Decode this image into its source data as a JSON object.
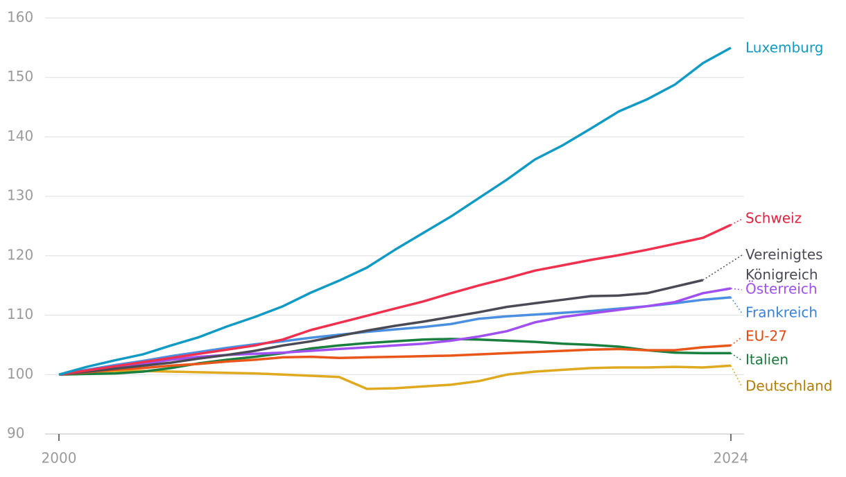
{
  "chart_data": {
    "type": "line",
    "x": [
      2000,
      2001,
      2002,
      2003,
      2004,
      2005,
      2006,
      2007,
      2008,
      2009,
      2010,
      2011,
      2012,
      2013,
      2014,
      2015,
      2016,
      2017,
      2018,
      2019,
      2020,
      2021,
      2022,
      2023,
      2024
    ],
    "xlim": [
      2000,
      2024
    ],
    "xticks": [
      2000,
      2024
    ],
    "ylim": [
      90,
      160
    ],
    "yticks": [
      90,
      100,
      110,
      120,
      130,
      140,
      150,
      160
    ],
    "grid": true,
    "series": [
      {
        "name": "Luxemburg",
        "color": "#119ac4",
        "values": [
          100,
          101.3,
          102.4,
          103.4,
          104.9,
          106.3,
          108.1,
          109.7,
          111.5,
          113.8,
          115.8,
          118.0,
          121.0,
          123.8,
          126.6,
          129.7,
          132.8,
          136.2,
          138.6,
          141.4,
          144.3,
          146.3,
          148.8,
          152.4,
          155.0
        ]
      },
      {
        "name": "Schweiz",
        "color": "#f0304f",
        "values": [
          100,
          100.7,
          101.4,
          102.1,
          102.8,
          103.5,
          104.2,
          104.9,
          105.9,
          107.5,
          108.7,
          109.9,
          111.1,
          112.3,
          113.7,
          115.0,
          116.2,
          117.5,
          118.4,
          119.3,
          120.1,
          121.0,
          122.0,
          123.0,
          125.2
        ]
      },
      {
        "name": "Vereinigtes Königreich",
        "color": "#4a4a55",
        "values": [
          100,
          100.5,
          101.0,
          101.5,
          102.0,
          102.7,
          103.3,
          104.0,
          104.9,
          105.6,
          106.5,
          107.4,
          108.2,
          108.9,
          109.7,
          110.5,
          111.4,
          112.0,
          112.6,
          113.2,
          113.3,
          113.7,
          114.8,
          115.9,
          null
        ]
      },
      {
        "name": "Österreich",
        "color": "#a050f0",
        "values": [
          100,
          100.6,
          101.2,
          101.8,
          102.5,
          103.0,
          103.3,
          103.5,
          103.7,
          104.0,
          104.3,
          104.6,
          104.9,
          105.2,
          105.7,
          106.4,
          107.3,
          108.8,
          109.7,
          110.3,
          110.9,
          111.5,
          112.2,
          113.7,
          114.5
        ]
      },
      {
        "name": "Frankreich",
        "color": "#4a8fe0",
        "values": [
          100,
          100.8,
          101.6,
          102.3,
          103.1,
          103.8,
          104.5,
          105.1,
          105.6,
          106.2,
          106.7,
          107.2,
          107.6,
          108.0,
          108.5,
          109.4,
          109.8,
          110.1,
          110.4,
          110.7,
          111.1,
          111.5,
          112.0,
          112.6,
          113.0
        ]
      },
      {
        "name": "EU-27",
        "color": "#e8561a",
        "values": [
          100,
          100.4,
          100.8,
          101.1,
          101.5,
          101.8,
          102.2,
          102.5,
          102.9,
          103.0,
          102.8,
          102.9,
          103.0,
          103.1,
          103.2,
          103.4,
          103.6,
          103.8,
          104.0,
          104.2,
          104.3,
          104.1,
          104.1,
          104.6,
          104.9
        ]
      },
      {
        "name": "Italien",
        "color": "#1a8040",
        "values": [
          100,
          100.1,
          100.2,
          100.5,
          101.1,
          101.9,
          102.5,
          103.0,
          103.6,
          104.4,
          104.9,
          105.3,
          105.6,
          105.9,
          106.0,
          105.9,
          105.7,
          105.5,
          105.2,
          105.0,
          104.7,
          104.1,
          103.7,
          103.6,
          103.6
        ]
      },
      {
        "name": "Deutschland",
        "color": "#e0aa20",
        "values": [
          100,
          100.4,
          100.6,
          100.6,
          100.5,
          100.4,
          100.3,
          100.2,
          100.0,
          99.8,
          99.6,
          97.6,
          97.7,
          98.0,
          98.3,
          98.9,
          100.0,
          100.5,
          100.8,
          101.1,
          101.2,
          101.2,
          101.3,
          101.2,
          101.5
        ]
      }
    ]
  }
}
